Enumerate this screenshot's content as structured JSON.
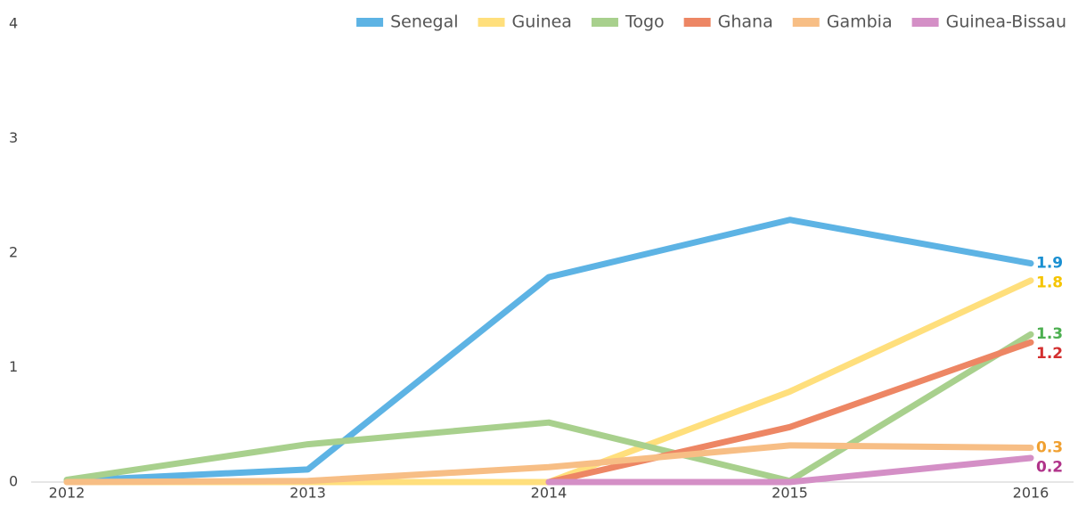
{
  "chart_data": {
    "type": "line",
    "categories": [
      "2012",
      "2013",
      "2014",
      "2015",
      "2016"
    ],
    "ylim": [
      0,
      4
    ],
    "yticks": [
      0,
      1,
      2,
      3,
      4
    ],
    "legend": "top-right",
    "series": [
      {
        "name": "Senegal",
        "color": "#5db3e4",
        "label_color": "#1a8fd1",
        "values": [
          0.01,
          0.11,
          1.79,
          2.29,
          1.91
        ],
        "value_labels": [
          null,
          null,
          null,
          null,
          "1.9"
        ]
      },
      {
        "name": "Guinea",
        "color": "#ffdf7c",
        "label_color": "#f5c400",
        "values": [
          0,
          0,
          0,
          0.79,
          1.76
        ],
        "value_labels": [
          null,
          null,
          null,
          null,
          "1.8"
        ]
      },
      {
        "name": "Togo",
        "color": "#a8d08d",
        "label_color": "#4caf50",
        "values": [
          0.02,
          0.33,
          0.52,
          0.01,
          1.29
        ],
        "value_labels": [
          null,
          null,
          null,
          null,
          "1.3"
        ]
      },
      {
        "name": "Ghana",
        "color": "#ed8664",
        "label_color": "#d32f2f",
        "values": [
          null,
          null,
          0,
          0.48,
          1.22
        ],
        "value_labels": [
          null,
          null,
          null,
          null,
          "1.2"
        ]
      },
      {
        "name": "Gambia",
        "color": "#f7be85",
        "label_color": "#f0a030",
        "values": [
          0,
          0.01,
          0.13,
          0.32,
          0.3
        ],
        "value_labels": [
          null,
          null,
          null,
          null,
          "0.3"
        ]
      },
      {
        "name": "Guinea-Bissau",
        "color": "#d48fc6",
        "label_color": "#b0338a",
        "values": [
          null,
          null,
          0,
          0,
          0.21
        ],
        "value_labels": [
          null,
          null,
          null,
          null,
          "0.2"
        ]
      }
    ]
  }
}
